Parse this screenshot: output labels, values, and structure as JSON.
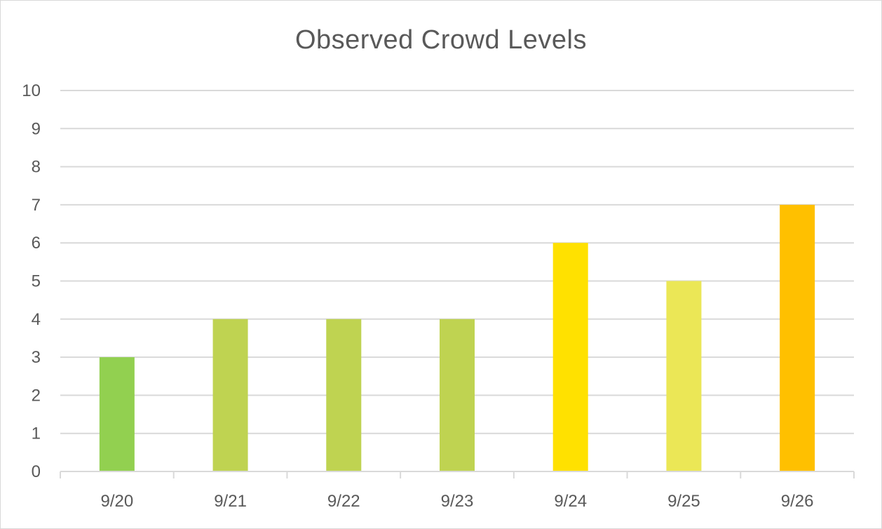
{
  "chart_data": {
    "type": "bar",
    "title": "Observed Crowd Levels",
    "xlabel": "",
    "ylabel": "",
    "categories": [
      "9/20",
      "9/21",
      "9/22",
      "9/23",
      "9/24",
      "9/25",
      "9/26"
    ],
    "values": [
      3,
      4,
      4,
      4,
      6,
      5,
      7
    ],
    "bar_colors": [
      "#92d050",
      "#bfd351",
      "#bfd351",
      "#bfd351",
      "#ffe100",
      "#ebe756",
      "#ffc000"
    ],
    "ylim": [
      0,
      10
    ],
    "yticks": [
      "0",
      "1",
      "2",
      "3",
      "4",
      "5",
      "6",
      "7",
      "8",
      "9",
      "10"
    ],
    "grid": true,
    "legend": "none",
    "colors": {
      "grid": "#d9d9d9",
      "axis": "#d9d9d9",
      "text": "#595959"
    }
  }
}
